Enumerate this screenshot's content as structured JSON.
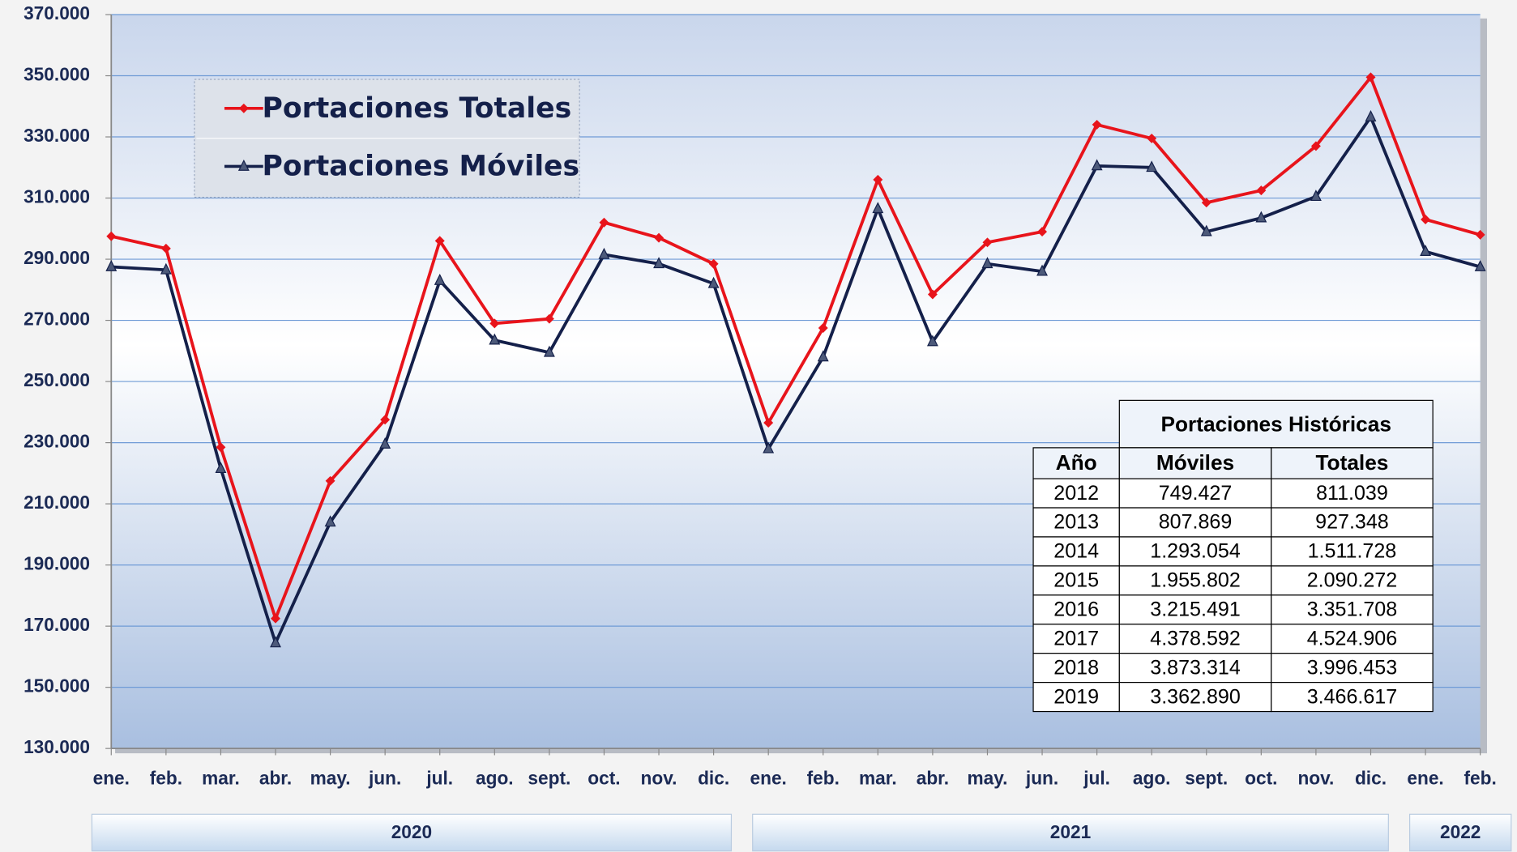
{
  "chart_data": {
    "type": "line",
    "categories": [
      "ene.",
      "feb.",
      "mar.",
      "abr.",
      "may.",
      "jun.",
      "jul.",
      "ago.",
      "sept.",
      "oct.",
      "nov.",
      "dic.",
      "ene.",
      "feb.",
      "mar.",
      "abr.",
      "may.",
      "jun.",
      "jul.",
      "ago.",
      "sept.",
      "oct.",
      "nov.",
      "dic.",
      "ene.",
      "feb."
    ],
    "years": [
      "2020",
      "2021",
      "2022"
    ],
    "series": [
      {
        "name": "Portaciones Totales",
        "color": "#e8141b",
        "marker": "diamond",
        "values": [
          297500,
          293500,
          228500,
          172500,
          217500,
          237500,
          296000,
          269000,
          270500,
          302000,
          297000,
          288500,
          236500,
          267500,
          316000,
          278500,
          295500,
          299000,
          334000,
          329500,
          308500,
          312500,
          327000,
          349500,
          303000,
          298000
        ]
      },
      {
        "name": "Portaciones Móviles",
        "color": "#14204a",
        "marker": "triangle",
        "values": [
          287500,
          286500,
          221500,
          164500,
          204000,
          229500,
          283000,
          263500,
          259500,
          291500,
          288500,
          282000,
          228000,
          258000,
          306500,
          263000,
          288500,
          286000,
          320500,
          320000,
          299000,
          303500,
          310500,
          336500,
          292500,
          287500
        ]
      }
    ],
    "ylim": [
      130000,
      370000
    ],
    "yticks": [
      {
        "value": 130000,
        "label": "130.000"
      },
      {
        "value": 150000,
        "label": "150.000"
      },
      {
        "value": 170000,
        "label": "170.000"
      },
      {
        "value": 190000,
        "label": "190.000"
      },
      {
        "value": 210000,
        "label": "210.000"
      },
      {
        "value": 230000,
        "label": "230.000"
      },
      {
        "value": 250000,
        "label": "250.000"
      },
      {
        "value": 270000,
        "label": "270.000"
      },
      {
        "value": 290000,
        "label": "290.000"
      },
      {
        "value": 310000,
        "label": "310.000"
      },
      {
        "value": 330000,
        "label": "330.000"
      },
      {
        "value": 350000,
        "label": "350.000"
      },
      {
        "value": 370000,
        "label": "370.000"
      }
    ],
    "grid": true,
    "legend": "upper left",
    "table": {
      "title": "Portaciones Históricas",
      "columns": [
        "Año",
        "Móviles",
        "Totales"
      ],
      "rows": [
        [
          "2012",
          "749.427",
          "811.039"
        ],
        [
          "2013",
          "807.869",
          "927.348"
        ],
        [
          "2014",
          "1.293.054",
          "1.511.728"
        ],
        [
          "2015",
          "1.955.802",
          "2.090.272"
        ],
        [
          "2016",
          "3.215.491",
          "3.351.708"
        ],
        [
          "2017",
          "4.378.592",
          "4.524.906"
        ],
        [
          "2018",
          "3.873.314",
          "3.996.453"
        ],
        [
          "2019",
          "3.362.890",
          "3.466.617"
        ]
      ]
    }
  }
}
